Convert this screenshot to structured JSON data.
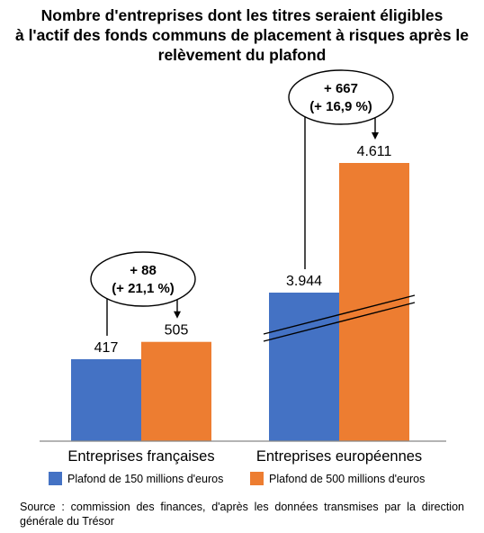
{
  "colors": {
    "blue": "#4472C4",
    "orange": "#ED7D31"
  },
  "chart_data": {
    "type": "bar",
    "title": "Nombre d'entreprises dont les titres seraient éligibles\nà l'actif des fonds communs de placement à risques après le\nrelèvement du plafond",
    "categories": [
      "Entreprises françaises",
      "Entreprises européennes"
    ],
    "series": [
      {
        "name": "Plafond de 150 millions d'euros",
        "values": [
          417,
          3944
        ],
        "labels": [
          "417",
          "3.944"
        ],
        "color": "#4472C4"
      },
      {
        "name": "Plafond de 500 millions d'euros",
        "values": [
          505,
          4611
        ],
        "labels": [
          "505",
          "4.611"
        ],
        "color": "#ED7D31"
      }
    ],
    "annotations": [
      {
        "category": "Entreprises françaises",
        "line1": "+ 88",
        "line2": "(+ 21,1 %)"
      },
      {
        "category": "Entreprises européennes",
        "line1": "+ 667",
        "line2": "(+ 16,9 %)"
      }
    ],
    "axis_break": {
      "category": "Entreprises européennes"
    },
    "legend_position": "bottom",
    "grid": false
  },
  "source": "Source : commission des finances, d'après les données transmises par la direction générale du Trésor"
}
